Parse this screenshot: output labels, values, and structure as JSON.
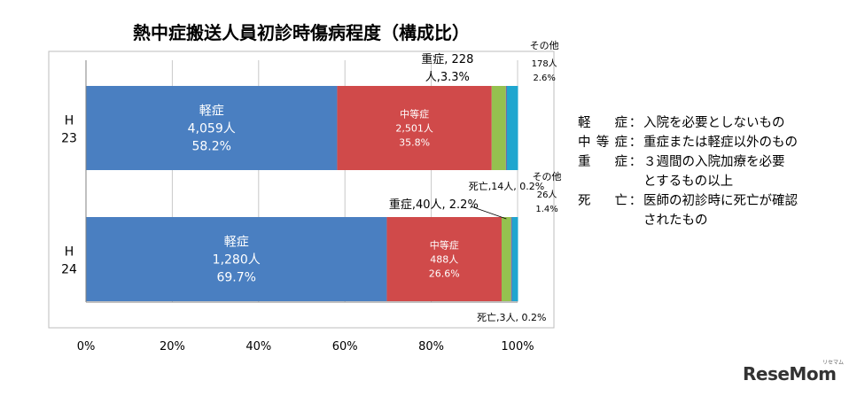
{
  "chart_data": {
    "type": "bar",
    "orientation": "horizontal",
    "stacked": "percent",
    "title": "熱中症搬送人員初診時傷病程度（構成比）",
    "categories": [
      [
        "H",
        "23"
      ],
      [
        "H",
        "24"
      ]
    ],
    "xlim": [
      0,
      100
    ],
    "x_ticks": [
      "0%",
      "20%",
      "40%",
      "60%",
      "80%",
      "100%"
    ],
    "grid": true,
    "series": [
      {
        "name": "軽症",
        "color": "#4a7fc1",
        "values": [
          58.2,
          69.7
        ]
      },
      {
        "name": "中等症",
        "color": "#d04a4a",
        "values": [
          35.8,
          26.6
        ]
      },
      {
        "name": "重症",
        "color": "#95c14f",
        "values": [
          3.3,
          2.2
        ]
      },
      {
        "name": "死亡",
        "color": "#7f5fa3",
        "values": [
          0.2,
          0.2
        ]
      },
      {
        "name": "その他",
        "color": "#1fa6cf",
        "values": [
          2.6,
          1.4
        ]
      }
    ],
    "inside_labels": [
      [
        [
          "軽症",
          "4,059人",
          "58.2%"
        ],
        [
          "中等症",
          "2,501人",
          "35.8%"
        ]
      ],
      [
        [
          "軽症",
          "1,280人",
          "69.7%"
        ],
        [
          "中等症",
          "488人",
          "26.6%"
        ]
      ]
    ],
    "callouts": [
      {
        "bar": 0,
        "series": 2,
        "position": "above",
        "lines": [
          "重症, 228",
          "人,3.3%"
        ]
      },
      {
        "bar": 0,
        "series": 4,
        "position": "above",
        "lines": [
          "その他",
          "178人",
          "2.6%"
        ]
      },
      {
        "bar": 0,
        "series": 3,
        "position": "below",
        "lines": [
          "死亡,14人, 0.2%"
        ]
      },
      {
        "bar": 1,
        "series": 2,
        "position": "above",
        "lines": [
          "重症,40人, 2.2%"
        ]
      },
      {
        "bar": 1,
        "series": 4,
        "position": "above",
        "lines": [
          "その他",
          "26人",
          "1.4%"
        ]
      },
      {
        "bar": 1,
        "series": 3,
        "position": "below",
        "lines": [
          "死亡,3人, 0.2%"
        ]
      }
    ]
  },
  "legend": [
    {
      "term": "軽症",
      "sep": "：",
      "desc": "入院を必要としないもの"
    },
    {
      "term": "中等症",
      "sep": "：",
      "desc": "重症または軽症以外のもの"
    },
    {
      "term": "重症",
      "sep": "：",
      "desc": "３週間の入院加療を必要"
    },
    {
      "term": "",
      "sep": "",
      "desc": "とするもの以上"
    },
    {
      "term": "死亡",
      "sep": "：",
      "desc": "医師の初診時に死亡が確認"
    },
    {
      "term": "",
      "sep": "",
      "desc": "されたもの"
    }
  ],
  "watermark": {
    "text": "ReseMom",
    "sub": "リセマム"
  }
}
